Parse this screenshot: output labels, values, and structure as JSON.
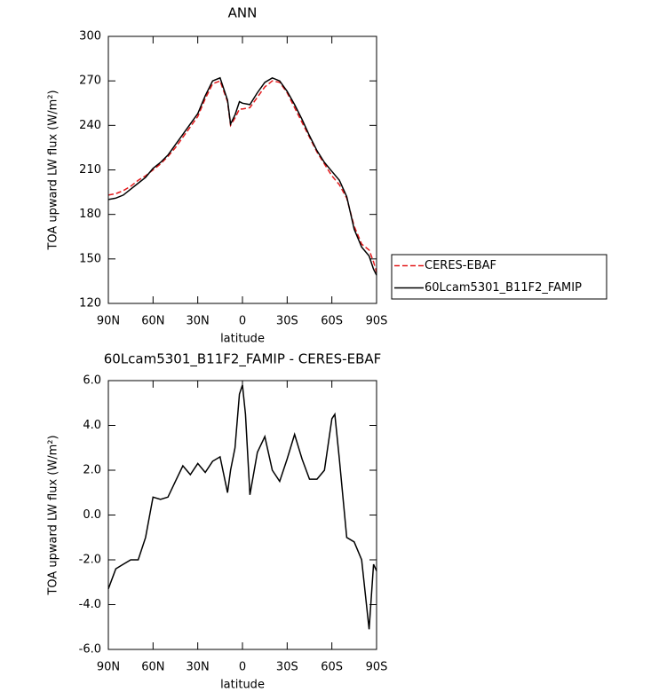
{
  "chart_data": [
    {
      "type": "line",
      "title": "ANN",
      "xlabel": "latitude",
      "ylabel": "TOA upward LW flux (W/m²)",
      "x": [
        90,
        85,
        80,
        75,
        70,
        65,
        60,
        55,
        50,
        45,
        40,
        35,
        30,
        25,
        20,
        15,
        10,
        8,
        5,
        2,
        0,
        -5,
        -10,
        -15,
        -20,
        -25,
        -30,
        -35,
        -40,
        -45,
        -50,
        -55,
        -60,
        -65,
        -70,
        -75,
        -80,
        -85,
        -88,
        -90
      ],
      "series": [
        {
          "name": "CERES-EBAF",
          "color": "#e31a1c",
          "dash": true,
          "values": [
            193,
            194,
            196,
            199,
            203,
            206,
            210,
            214,
            219,
            225,
            232,
            239,
            246,
            258,
            268,
            270,
            256,
            240,
            245,
            251,
            251,
            252,
            259,
            266,
            270,
            269,
            262,
            252,
            242,
            232,
            222,
            214,
            206,
            200,
            191,
            172,
            160,
            156,
            148,
            141
          ]
        },
        {
          "name": "60Lcam5301_B11F2_FAMIP",
          "color": "#000000",
          "dash": false,
          "values": [
            190,
            191,
            193,
            197,
            201,
            205,
            211,
            215,
            220,
            227,
            234,
            241,
            248,
            260,
            270,
            272,
            257,
            241,
            247,
            256,
            255,
            254,
            262,
            269,
            272,
            270,
            263,
            254,
            244,
            233,
            223,
            215,
            209,
            203,
            192,
            170,
            158,
            152,
            143,
            139
          ]
        }
      ],
      "xlim": [
        90,
        -90
      ],
      "xticks": [
        {
          "value": 90,
          "label": "90N"
        },
        {
          "value": 60,
          "label": "60N"
        },
        {
          "value": 30,
          "label": "30N"
        },
        0,
        {
          "value": -30,
          "label": "30S"
        },
        {
          "value": -60,
          "label": "60S"
        },
        {
          "value": -90,
          "label": "90S"
        }
      ],
      "ylim": [
        120,
        300
      ],
      "yticks": [
        120,
        150,
        180,
        210,
        240,
        270,
        300
      ],
      "legend": "right"
    },
    {
      "type": "line",
      "title": "60Lcam5301_B11F2_FAMIP - CERES-EBAF",
      "xlabel": "latitude",
      "ylabel": "TOA upward LW flux (W/m²)",
      "x": [
        90,
        85,
        80,
        75,
        70,
        65,
        60,
        55,
        50,
        45,
        40,
        35,
        30,
        25,
        20,
        15,
        10,
        8,
        5,
        2,
        0,
        -2,
        -5,
        -10,
        -15,
        -20,
        -25,
        -30,
        -35,
        -40,
        -45,
        -50,
        -55,
        -60,
        -62,
        -65,
        -70,
        -75,
        -80,
        -85,
        -88,
        -90
      ],
      "series": [
        {
          "color": "#000000",
          "dash": false,
          "values": [
            -3.3,
            -2.4,
            -2.2,
            -2.0,
            -2.0,
            -1.0,
            0.8,
            0.7,
            0.8,
            1.5,
            2.2,
            1.8,
            2.3,
            1.9,
            2.4,
            2.6,
            1.0,
            2.0,
            3.0,
            5.4,
            5.8,
            4.5,
            0.9,
            2.8,
            3.5,
            2.0,
            1.5,
            2.5,
            3.6,
            2.5,
            1.6,
            1.6,
            2.0,
            4.3,
            4.5,
            2.5,
            -1.0,
            -1.2,
            -2.0,
            -5.1,
            -2.2,
            -2.5
          ]
        }
      ],
      "xlim": [
        90,
        -90
      ],
      "xticks": [
        {
          "value": 90,
          "label": "90N"
        },
        {
          "value": 60,
          "label": "60N"
        },
        {
          "value": 30,
          "label": "30N"
        },
        0,
        {
          "value": -30,
          "label": "30S"
        },
        {
          "value": -60,
          "label": "60S"
        },
        {
          "value": -90,
          "label": "90S"
        }
      ],
      "ylim": [
        -6,
        6
      ],
      "yticks": [
        {
          "value": -6,
          "label": "-6.0"
        },
        {
          "value": -4,
          "label": "-4.0"
        },
        {
          "value": -2,
          "label": "-2.0"
        },
        {
          "value": 0,
          "label": "0.0"
        },
        {
          "value": 2,
          "label": "2.0"
        },
        {
          "value": 4,
          "label": "4.0"
        },
        {
          "value": 6,
          "label": "6.0"
        }
      ]
    }
  ]
}
